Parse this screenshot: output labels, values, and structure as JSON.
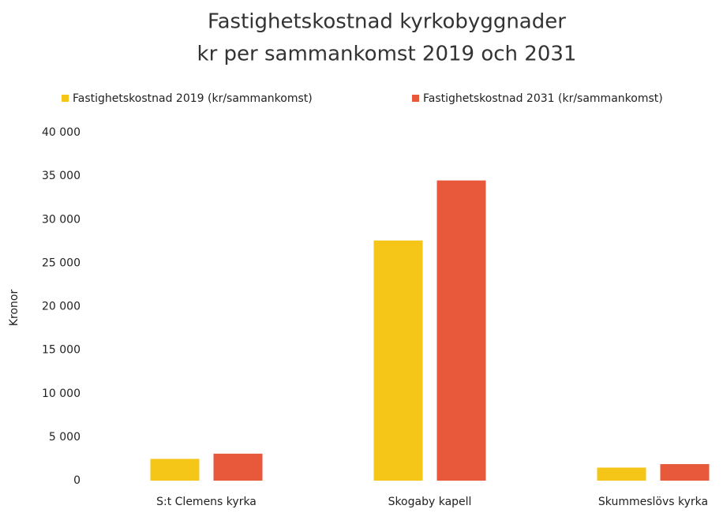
{
  "chart_data": {
    "type": "bar",
    "title": [
      "Fastighetskostnad kyrkobyggnader",
      "kr per sammankomst 2019 och 2031"
    ],
    "y_label": "Kronor",
    "categories": [
      "S:t Clemens kyrka",
      "Skogaby kapell",
      "Skummeslövs kyrka"
    ],
    "series": [
      {
        "name": "Fastighetskostnad 2019 (kr/sammankomst)",
        "color": "#f5c518",
        "values": [
          2500,
          27600,
          1500
        ]
      },
      {
        "name": "Fastighetskostnad 2031 (kr/sammankomst)",
        "color": "#e8593b",
        "values": [
          3100,
          34500,
          1900
        ]
      }
    ],
    "ylim": [
      0,
      40000
    ],
    "yticks": [
      {
        "value": 0,
        "label": "0"
      },
      {
        "value": 5000,
        "label": "5 000"
      },
      {
        "value": 10000,
        "label": "10 000"
      },
      {
        "value": 15000,
        "label": "15 000"
      },
      {
        "value": 20000,
        "label": "20 000"
      },
      {
        "value": 25000,
        "label": "25 000"
      },
      {
        "value": 30000,
        "label": "30 000"
      },
      {
        "value": 35000,
        "label": "35 000"
      },
      {
        "value": 40000,
        "label": "40 000"
      }
    ],
    "grid": false
  }
}
